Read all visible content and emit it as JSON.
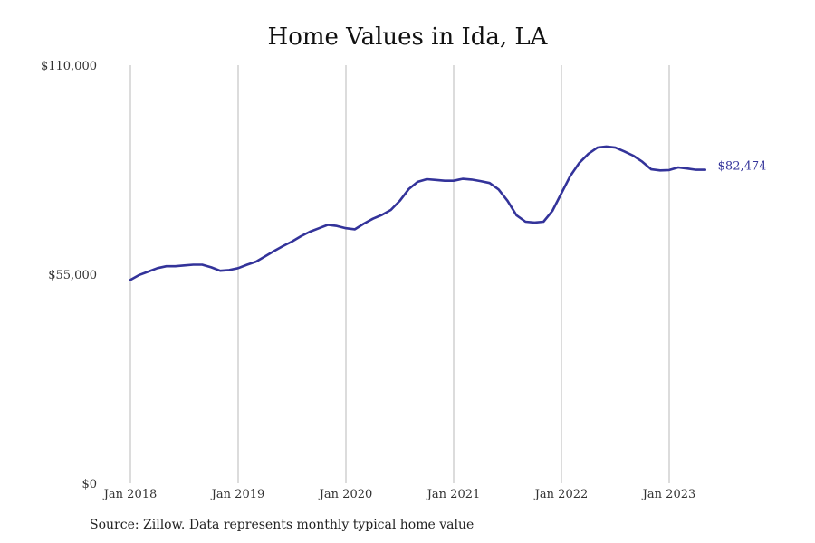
{
  "chart_data": {
    "type": "line",
    "title": "Home Values in Ida, LA",
    "xlabel": "",
    "ylabel": "",
    "ylim": [
      0,
      110000
    ],
    "y_ticks": [
      {
        "value": 0,
        "label": "$0"
      },
      {
        "value": 55000,
        "label": "$55,000"
      },
      {
        "value": 110000,
        "label": "$110,000"
      }
    ],
    "x_ticks": [
      {
        "date": "2018-01",
        "label": "Jan 2018"
      },
      {
        "date": "2019-01",
        "label": "Jan 2019"
      },
      {
        "date": "2020-01",
        "label": "Jan 2020"
      },
      {
        "date": "2021-01",
        "label": "Jan 2021"
      },
      {
        "date": "2022-01",
        "label": "Jan 2022"
      },
      {
        "date": "2023-01",
        "label": "Jan 2023"
      }
    ],
    "grid": "vertical at x ticks",
    "line_color": "#33339a",
    "end_label": "$82,474",
    "series": [
      {
        "x": [
          "2018-01",
          "2018-02",
          "2018-03",
          "2018-04",
          "2018-05",
          "2018-06",
          "2018-07",
          "2018-08",
          "2018-09",
          "2018-10",
          "2018-11",
          "2018-12",
          "2019-01",
          "2019-02",
          "2019-03",
          "2019-04",
          "2019-05",
          "2019-06",
          "2019-07",
          "2019-08",
          "2019-09",
          "2019-10",
          "2019-11",
          "2019-12",
          "2020-01",
          "2020-02",
          "2020-03",
          "2020-04",
          "2020-05",
          "2020-06",
          "2020-07",
          "2020-08",
          "2020-09",
          "2020-10",
          "2020-11",
          "2020-12",
          "2021-01",
          "2021-02",
          "2021-03",
          "2021-04",
          "2021-05",
          "2021-06",
          "2021-07",
          "2021-08",
          "2021-09",
          "2021-10",
          "2021-11",
          "2021-12",
          "2022-01",
          "2022-02",
          "2022-03",
          "2022-04",
          "2022-05",
          "2022-06",
          "2022-07",
          "2022-08",
          "2022-09",
          "2022-10",
          "2022-11",
          "2022-12",
          "2023-01",
          "2023-02",
          "2023-03",
          "2023-04",
          "2023-05"
        ],
        "values": [
          53500,
          54800,
          55700,
          56600,
          57100,
          57100,
          57300,
          57500,
          57500,
          56800,
          55900,
          56100,
          56600,
          57500,
          58300,
          59700,
          61100,
          62400,
          63600,
          65000,
          66200,
          67100,
          68000,
          67700,
          67100,
          66800,
          68300,
          69600,
          70600,
          71900,
          74300,
          77400,
          79300,
          80000,
          79800,
          79600,
          79600,
          80100,
          79900,
          79500,
          79000,
          77300,
          74300,
          70500,
          68800,
          68600,
          68800,
          71700,
          76300,
          80900,
          84300,
          86700,
          88300,
          88600,
          88300,
          87300,
          86200,
          84600,
          82600,
          82300,
          82400,
          83100,
          82800,
          82474,
          82474
        ]
      }
    ]
  },
  "footer": {
    "source": "Source: Zillow. Data represents monthly typical home value"
  }
}
